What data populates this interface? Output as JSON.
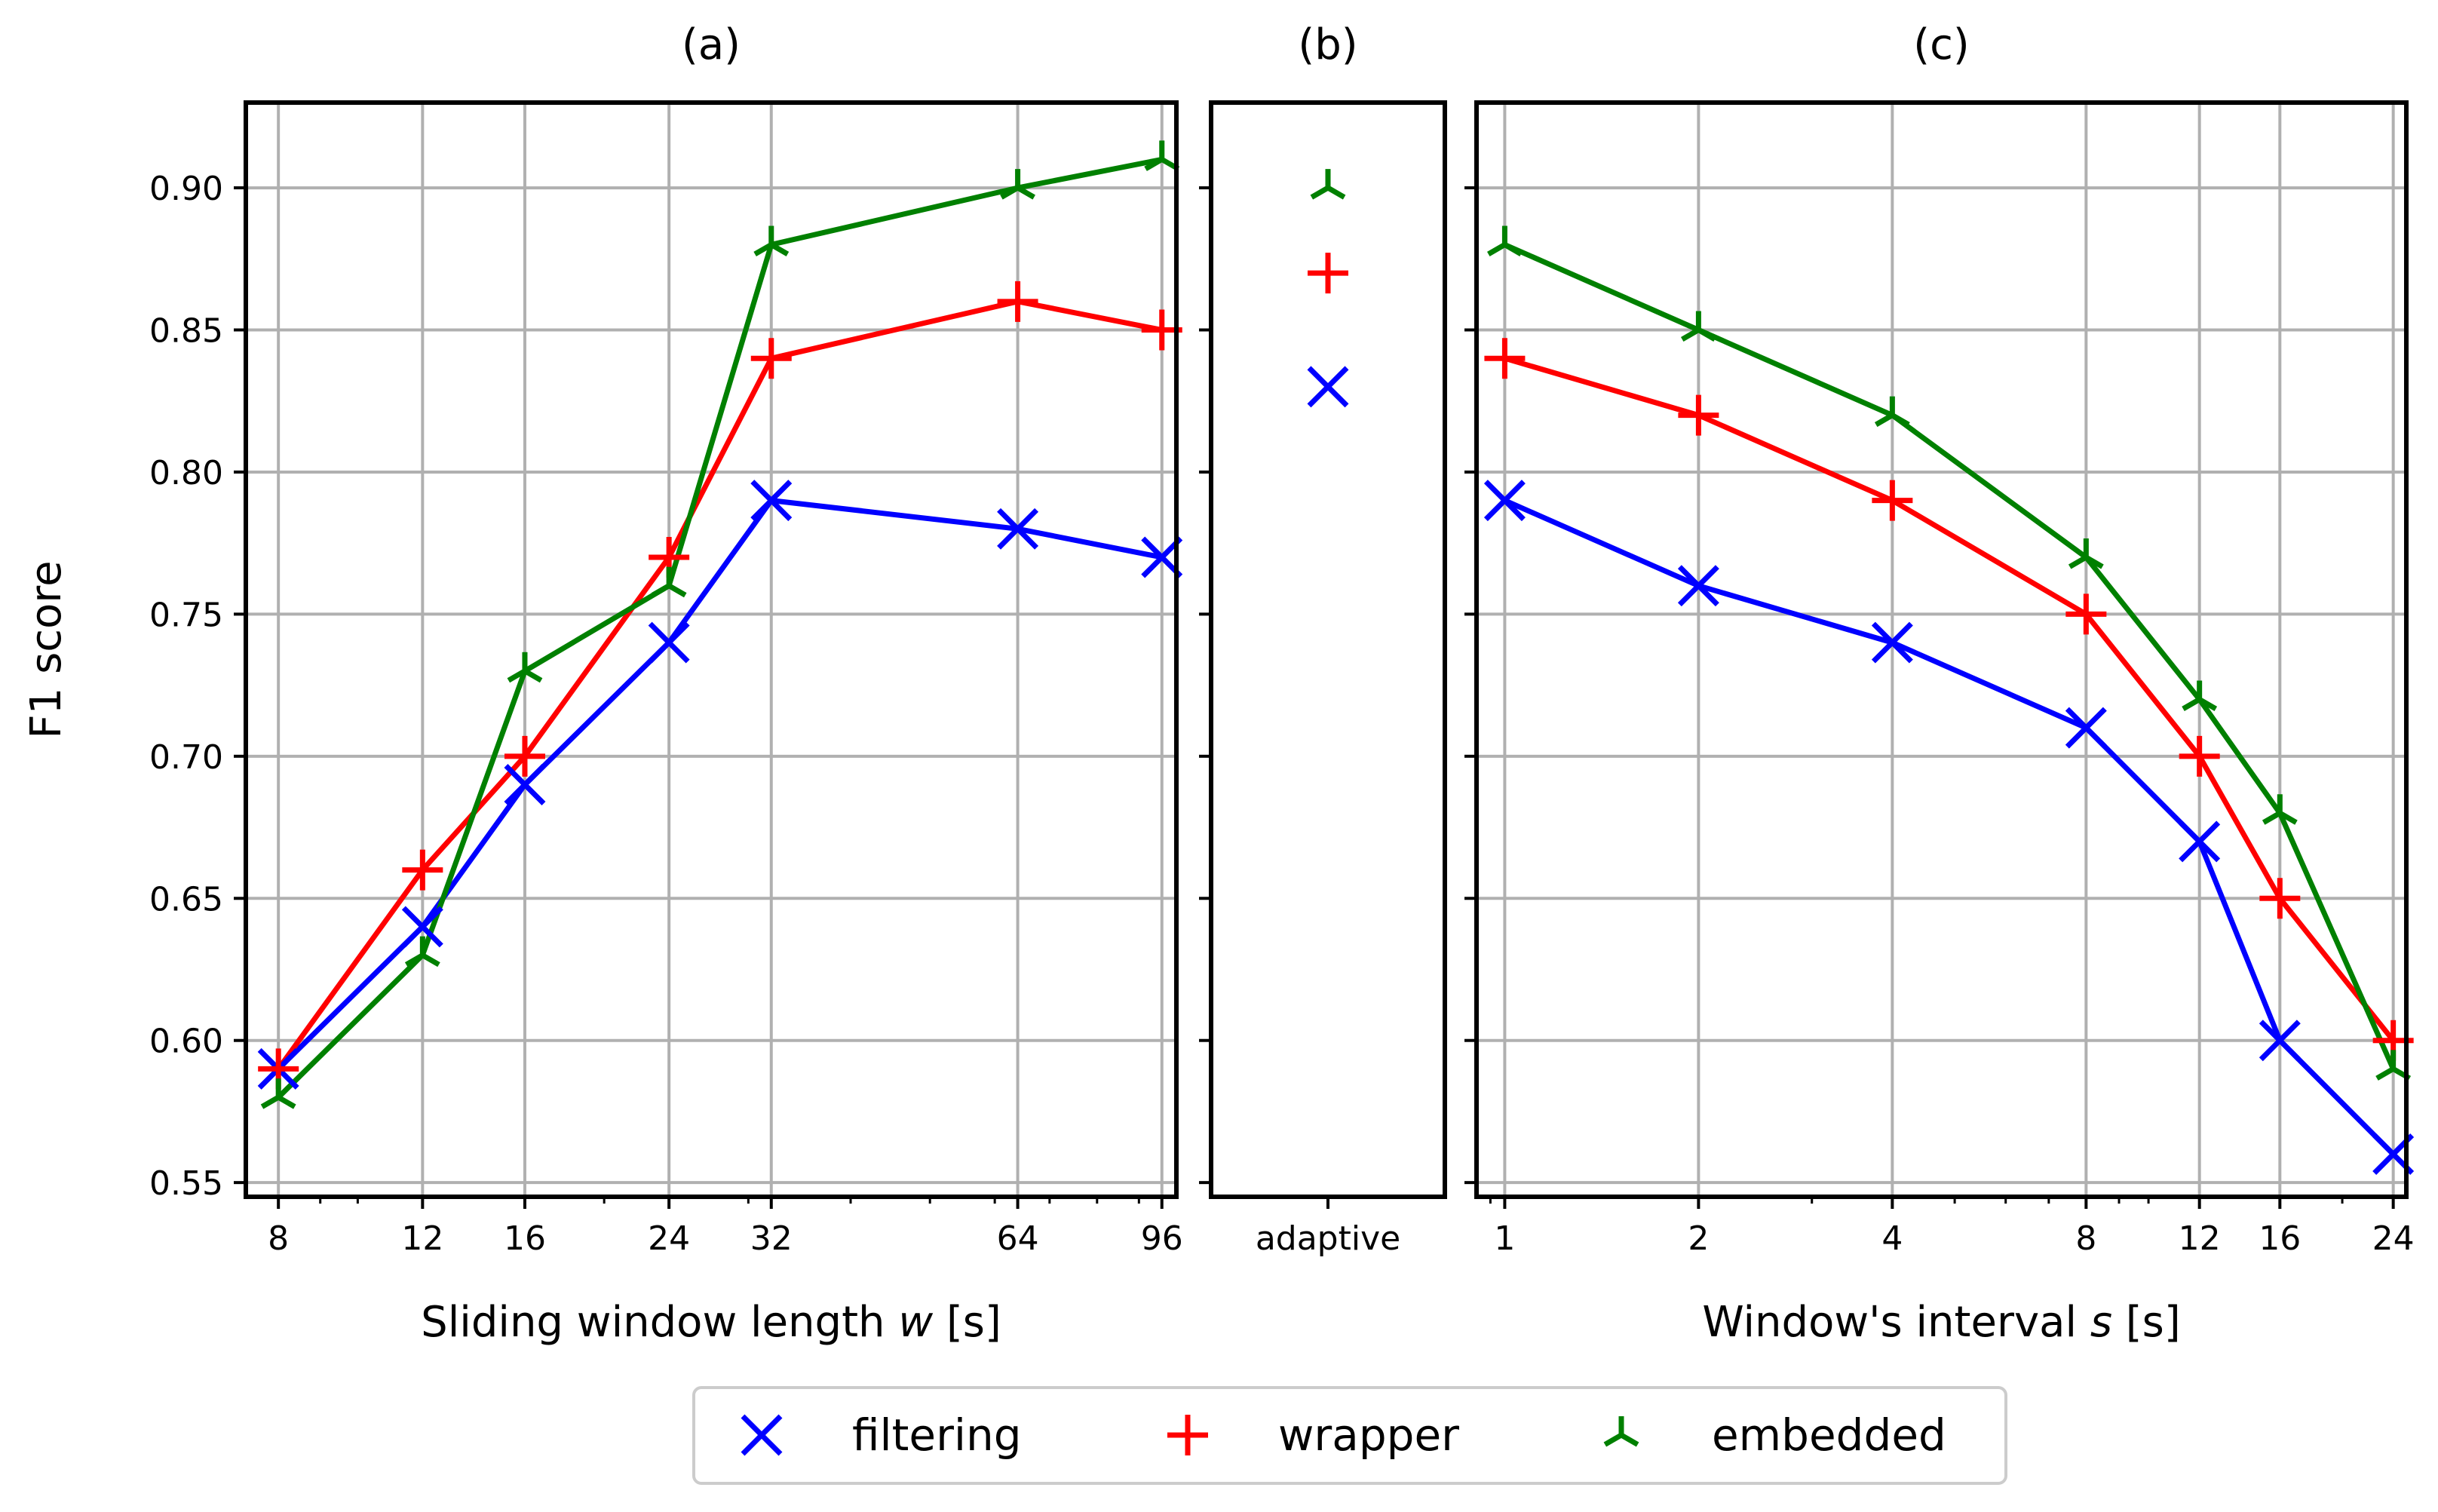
{
  "chart_data": [
    {
      "panel_title": "(a)",
      "type": "line",
      "xscale": "log",
      "x": [
        8,
        12,
        16,
        24,
        32,
        64,
        96
      ],
      "xticks": [
        "8",
        "12",
        "16",
        "24",
        "32",
        "64",
        "96"
      ],
      "xlabel_prefix": "Sliding window length ",
      "xlabel_var": "w",
      "xlabel_suffix": " [s]",
      "ylabel": "F1 score",
      "ylim": [
        0.545,
        0.93
      ],
      "yticks": [
        "0.55",
        "0.60",
        "0.65",
        "0.70",
        "0.75",
        "0.80",
        "0.85",
        "0.90"
      ],
      "grid": true,
      "series": [
        {
          "name": "filtering",
          "marker": "x",
          "color": "#0000ff",
          "values": [
            0.59,
            0.64,
            0.69,
            0.74,
            0.79,
            0.78,
            0.77
          ]
        },
        {
          "name": "wrapper",
          "marker": "plus",
          "color": "#ff0000",
          "values": [
            0.59,
            0.66,
            0.7,
            0.77,
            0.84,
            0.86,
            0.85
          ]
        },
        {
          "name": "embedded",
          "marker": "tri",
          "color": "#008000",
          "values": [
            0.58,
            0.63,
            0.73,
            0.76,
            0.88,
            0.9,
            0.91
          ]
        }
      ]
    },
    {
      "panel_title": "(b)",
      "type": "scatter",
      "categories": [
        "adaptive"
      ],
      "grid": false,
      "series": [
        {
          "name": "filtering",
          "marker": "x",
          "color": "#0000ff",
          "values": [
            0.83
          ]
        },
        {
          "name": "wrapper",
          "marker": "plus",
          "color": "#ff0000",
          "values": [
            0.87
          ]
        },
        {
          "name": "embedded",
          "marker": "tri",
          "color": "#008000",
          "values": [
            0.9
          ]
        }
      ]
    },
    {
      "panel_title": "(c)",
      "type": "line",
      "xscale": "log",
      "x": [
        1,
        2,
        4,
        8,
        12,
        16,
        24
      ],
      "xticks": [
        "1",
        "2",
        "4",
        "8",
        "12",
        "16",
        "24"
      ],
      "xlabel_prefix": "Window's interval ",
      "xlabel_var": "s",
      "xlabel_suffix": " [s]",
      "grid": true,
      "series": [
        {
          "name": "filtering",
          "marker": "x",
          "color": "#0000ff",
          "values": [
            0.79,
            0.76,
            0.74,
            0.71,
            0.67,
            0.6,
            0.56
          ]
        },
        {
          "name": "wrapper",
          "marker": "plus",
          "color": "#ff0000",
          "values": [
            0.84,
            0.82,
            0.79,
            0.75,
            0.7,
            0.65,
            0.6
          ]
        },
        {
          "name": "embedded",
          "marker": "tri",
          "color": "#008000",
          "values": [
            0.88,
            0.85,
            0.82,
            0.77,
            0.72,
            0.68,
            0.59
          ]
        }
      ]
    }
  ],
  "legend": {
    "placement": "bottom-center",
    "entries": [
      {
        "label": "filtering",
        "marker": "x",
        "color": "#0000ff"
      },
      {
        "label": "wrapper",
        "marker": "plus",
        "color": "#ff0000"
      },
      {
        "label": "embedded",
        "marker": "tri",
        "color": "#008000"
      }
    ]
  }
}
